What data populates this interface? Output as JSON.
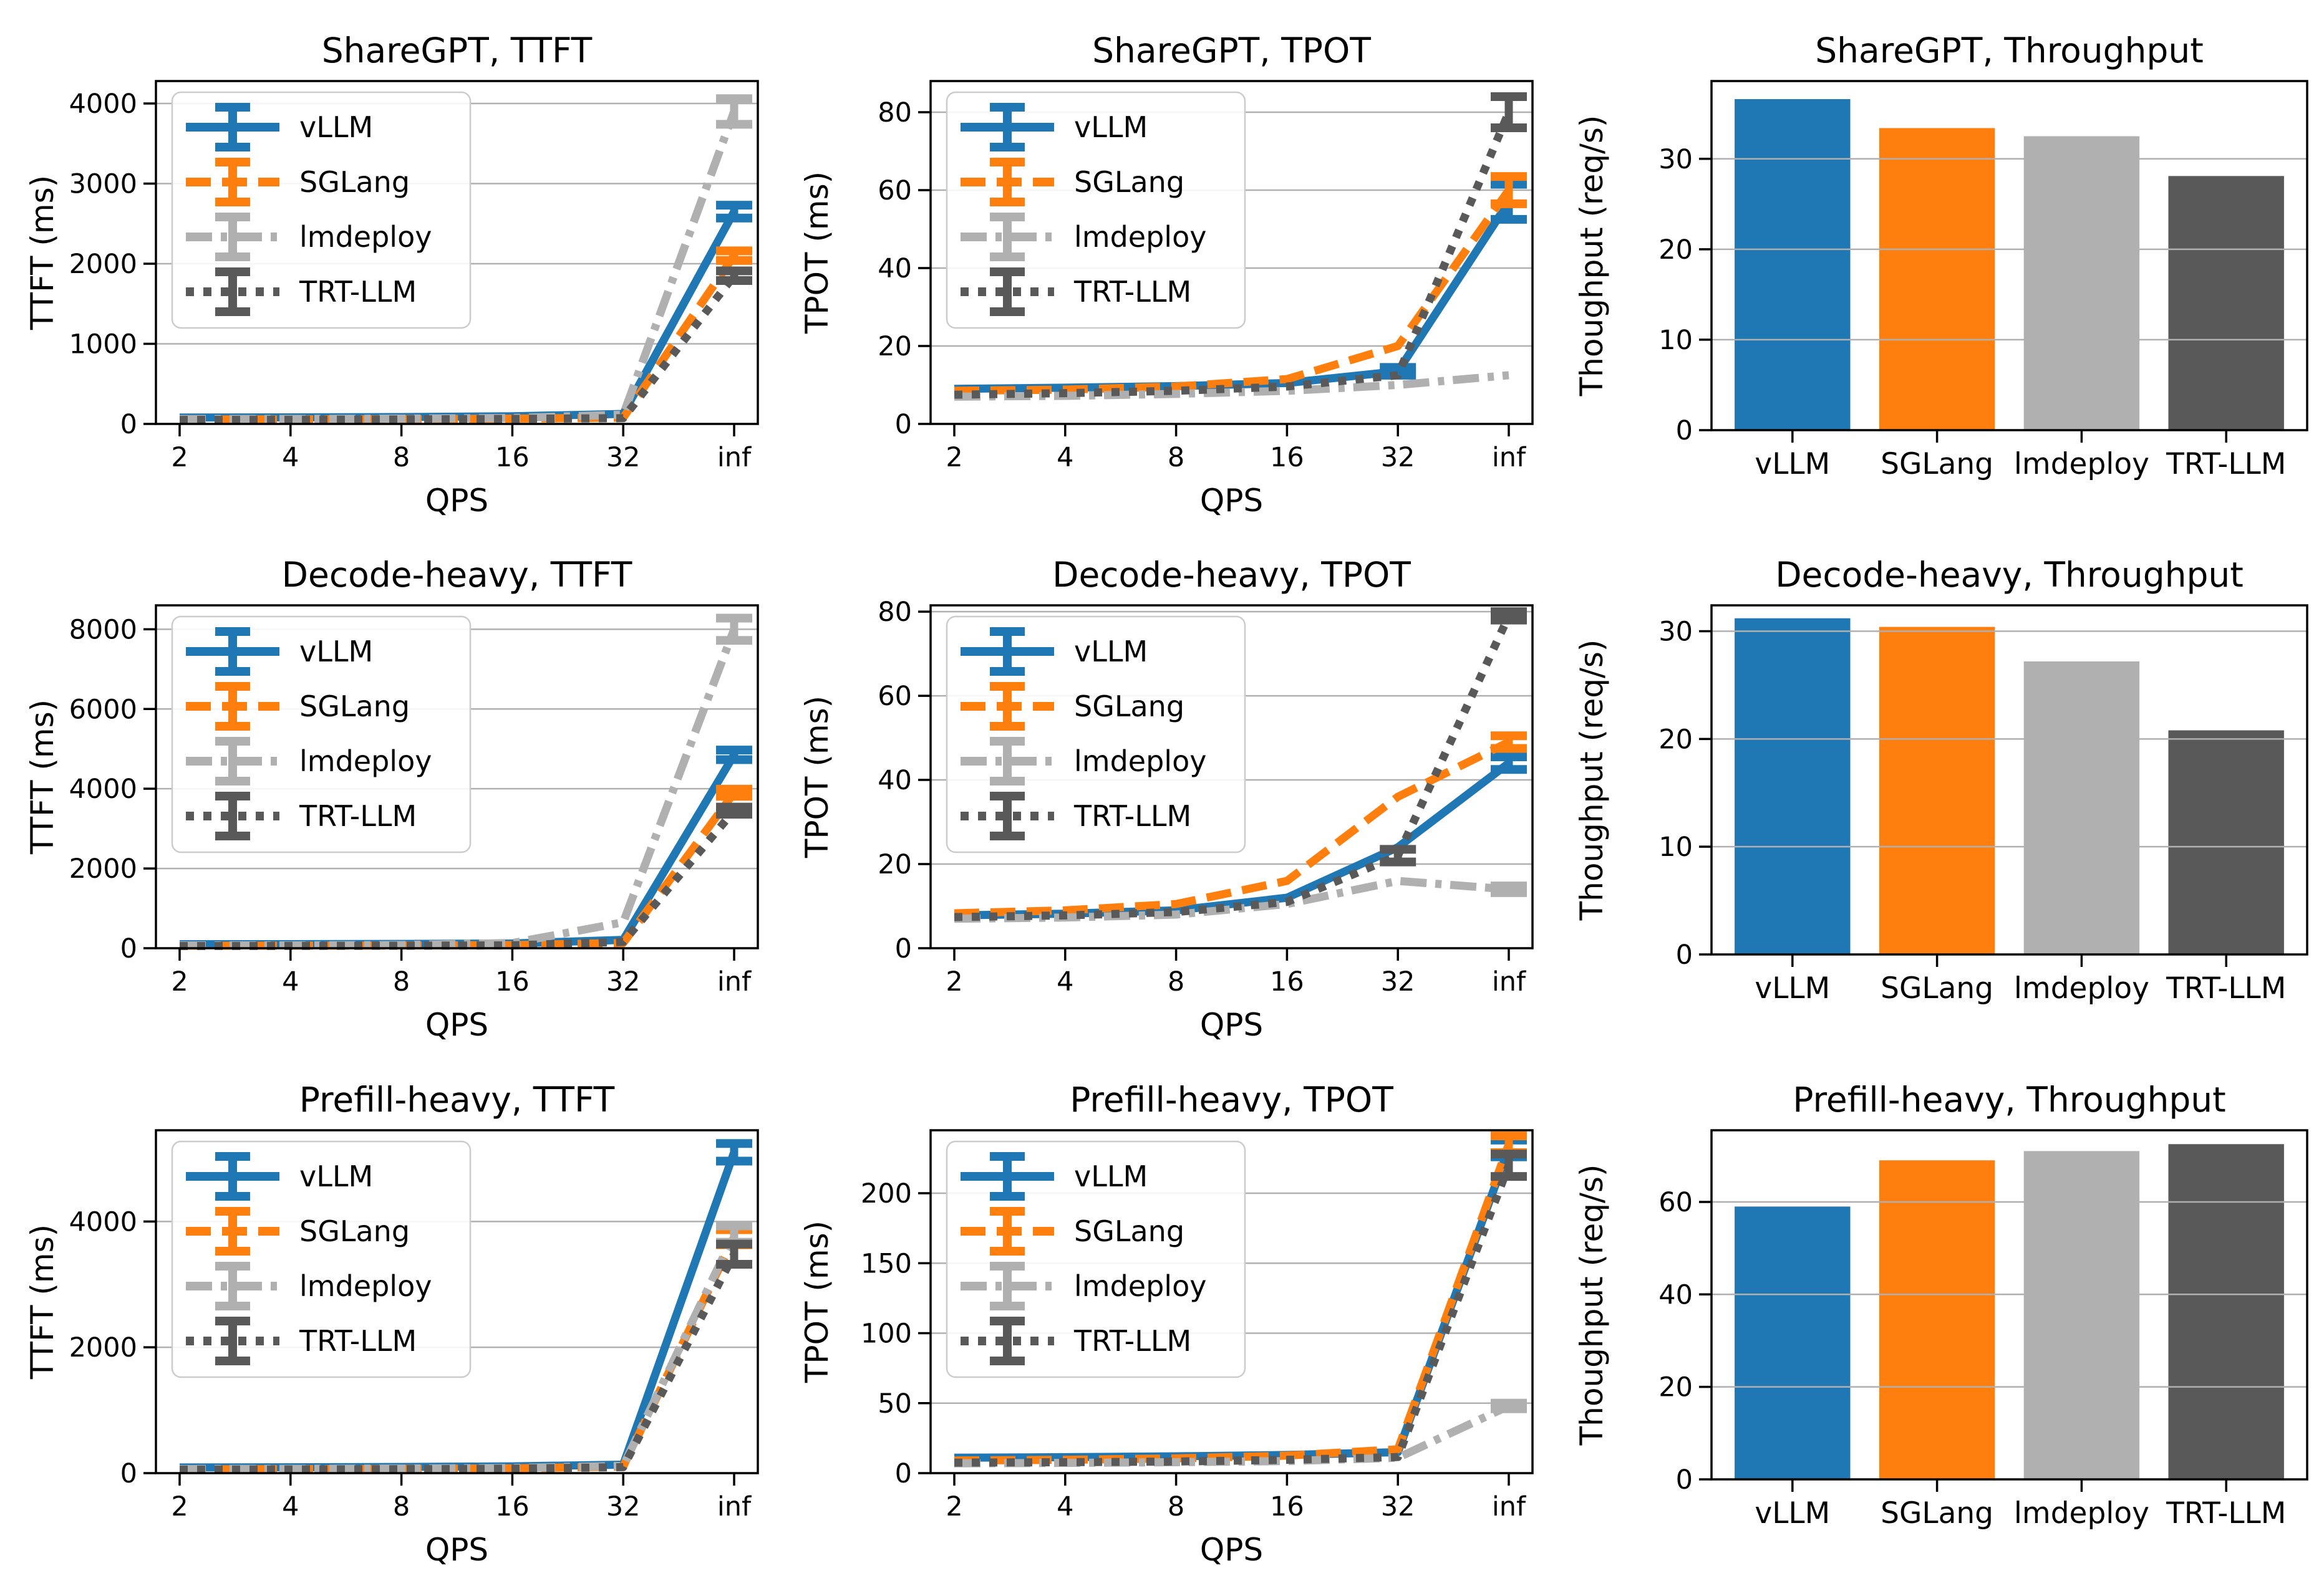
{
  "figure": {
    "rows": 3,
    "cols": 3,
    "background": "#ffffff"
  },
  "series_meta": {
    "names": [
      "vLLM",
      "SGLang",
      "lmdeploy",
      "TRT-LLM"
    ],
    "colors": [
      "#1f77b4",
      "#ff7f0e",
      "#b0b0b0",
      "#595959"
    ],
    "dashes": [
      "solid",
      "dashed",
      "dashdot",
      "dotted"
    ]
  },
  "chart_data": [
    {
      "type": "line",
      "title": "ShareGPT, TTFT",
      "xlabel": "QPS",
      "ylabel": "TTFT (ms)",
      "x_ticklabels": [
        "2",
        "4",
        "8",
        "16",
        "32",
        "inf"
      ],
      "yticks": [
        0,
        1000,
        2000,
        3000,
        4000
      ],
      "ylim": [
        0,
        4280
      ],
      "grid": true,
      "legend_position": "upper-left",
      "series": [
        {
          "name": "vLLM",
          "color": "#1f77b4",
          "dash": "solid",
          "values": [
            80,
            82,
            86,
            95,
            125,
            2650
          ],
          "yerr": [
            0,
            0,
            0,
            0,
            0,
            80
          ]
        },
        {
          "name": "SGLang",
          "color": "#ff7f0e",
          "dash": "dashed",
          "values": [
            55,
            57,
            60,
            66,
            78,
            2100
          ],
          "yerr": [
            0,
            0,
            0,
            0,
            0,
            60
          ]
        },
        {
          "name": "lmdeploy",
          "color": "#b0b0b0",
          "dash": "dashdot",
          "values": [
            60,
            62,
            66,
            74,
            115,
            3900
          ],
          "yerr": [
            0,
            0,
            0,
            0,
            0,
            160
          ]
        },
        {
          "name": "TRT-LLM",
          "color": "#595959",
          "dash": "dotted",
          "values": [
            50,
            52,
            56,
            63,
            72,
            1850
          ],
          "yerr": [
            0,
            0,
            0,
            0,
            0,
            60
          ]
        }
      ]
    },
    {
      "type": "line",
      "title": "ShareGPT, TPOT",
      "xlabel": "QPS",
      "ylabel": "TPOT (ms)",
      "x_ticklabels": [
        "2",
        "4",
        "8",
        "16",
        "32",
        "inf"
      ],
      "yticks": [
        0,
        20,
        40,
        60,
        80
      ],
      "ylim": [
        0,
        88
      ],
      "grid": true,
      "legend_position": "upper-left",
      "series": [
        {
          "name": "vLLM",
          "color": "#1f77b4",
          "dash": "solid",
          "values": [
            9,
            9.3,
            9.7,
            10.5,
            13.5,
            57
          ],
          "yerr": [
            0,
            0,
            0,
            0,
            1,
            4.5
          ]
        },
        {
          "name": "SGLang",
          "color": "#ff7f0e",
          "dash": "dashed",
          "values": [
            8.5,
            8.8,
            9.6,
            11.5,
            20,
            60
          ],
          "yerr": [
            0,
            0,
            0,
            0,
            0,
            3.5
          ]
        },
        {
          "name": "lmdeploy",
          "color": "#b0b0b0",
          "dash": "dashdot",
          "values": [
            7,
            7.2,
            7.7,
            8.5,
            10,
            12.5
          ],
          "yerr": [
            0,
            0,
            0,
            0,
            0,
            0
          ]
        },
        {
          "name": "TRT-LLM",
          "color": "#595959",
          "dash": "dotted",
          "values": [
            7.5,
            7.9,
            8.5,
            9.6,
            12.5,
            80
          ],
          "yerr": [
            0,
            0,
            0,
            0,
            0,
            4
          ]
        }
      ]
    },
    {
      "type": "bar",
      "title": "ShareGPT, Throughput",
      "ylabel": "Thoughput (req/s)",
      "categories": [
        "vLLM",
        "SGLang",
        "lmdeploy",
        "TRT-LLM"
      ],
      "values": [
        36.6,
        33.4,
        32.5,
        28.1
      ],
      "colors": [
        "#1f77b4",
        "#ff7f0e",
        "#b0b0b0",
        "#595959"
      ],
      "yticks": [
        0,
        10,
        20,
        30
      ],
      "ylim": [
        0,
        38.6
      ],
      "grid": true
    },
    {
      "type": "line",
      "title": "Decode-heavy, TTFT",
      "xlabel": "QPS",
      "ylabel": "TTFT (ms)",
      "x_ticklabels": [
        "2",
        "4",
        "8",
        "16",
        "32",
        "inf"
      ],
      "yticks": [
        0,
        2000,
        4000,
        6000,
        8000
      ],
      "ylim": [
        0,
        8600
      ],
      "grid": true,
      "legend_position": "upper-left",
      "series": [
        {
          "name": "vLLM",
          "color": "#1f77b4",
          "dash": "solid",
          "values": [
            100,
            102,
            108,
            120,
            210,
            4850
          ],
          "yerr": [
            0,
            0,
            0,
            0,
            0,
            120
          ]
        },
        {
          "name": "SGLang",
          "color": "#ff7f0e",
          "dash": "dashed",
          "values": [
            62,
            64,
            68,
            78,
            130,
            3900
          ],
          "yerr": [
            0,
            0,
            0,
            0,
            0,
            90
          ]
        },
        {
          "name": "lmdeploy",
          "color": "#b0b0b0",
          "dash": "dashdot",
          "values": [
            70,
            73,
            80,
            130,
            650,
            8000
          ],
          "yerr": [
            0,
            0,
            0,
            0,
            0,
            280
          ]
        },
        {
          "name": "TRT-LLM",
          "color": "#595959",
          "dash": "dotted",
          "values": [
            55,
            58,
            63,
            72,
            160,
            3450
          ],
          "yerr": [
            0,
            0,
            0,
            0,
            0,
            90
          ]
        }
      ]
    },
    {
      "type": "line",
      "title": "Decode-heavy, TPOT",
      "xlabel": "QPS",
      "ylabel": "TPOT (ms)",
      "x_ticklabels": [
        "2",
        "4",
        "8",
        "16",
        "32",
        "inf"
      ],
      "yticks": [
        0,
        20,
        40,
        60,
        80
      ],
      "ylim": [
        0,
        81.5
      ],
      "grid": true,
      "legend_position": "upper-left",
      "series": [
        {
          "name": "vLLM",
          "color": "#1f77b4",
          "dash": "solid",
          "values": [
            7.8,
            8.2,
            9,
            12,
            24,
            44
          ],
          "yerr": [
            0,
            0,
            0,
            0,
            0,
            1.5
          ]
        },
        {
          "name": "SGLang",
          "color": "#ff7f0e",
          "dash": "dashed",
          "values": [
            8.3,
            9,
            10.5,
            16,
            36,
            49
          ],
          "yerr": [
            0,
            0,
            0,
            0,
            0,
            1.5
          ]
        },
        {
          "name": "lmdeploy",
          "color": "#b0b0b0",
          "dash": "dashdot",
          "values": [
            7,
            7.3,
            8,
            10.5,
            16,
            14
          ],
          "yerr": [
            0,
            0,
            0,
            0,
            0,
            0.8
          ]
        },
        {
          "name": "TRT-LLM",
          "color": "#595959",
          "dash": "dotted",
          "values": [
            7.4,
            7.8,
            8.6,
            11,
            22,
            79
          ],
          "yerr": [
            0,
            0,
            0,
            0,
            1.5,
            1
          ]
        }
      ]
    },
    {
      "type": "bar",
      "title": "Decode-heavy, Throughput",
      "ylabel": "Thoughput (req/s)",
      "categories": [
        "vLLM",
        "SGLang",
        "lmdeploy",
        "TRT-LLM"
      ],
      "values": [
        31.2,
        30.4,
        27.2,
        20.8
      ],
      "colors": [
        "#1f77b4",
        "#ff7f0e",
        "#b0b0b0",
        "#595959"
      ],
      "yticks": [
        0,
        10,
        20,
        30
      ],
      "ylim": [
        0,
        32.4
      ],
      "grid": true
    },
    {
      "type": "line",
      "title": "Prefill-heavy, TTFT",
      "xlabel": "QPS",
      "ylabel": "TTFT (ms)",
      "x_ticklabels": [
        "2",
        "4",
        "8",
        "16",
        "32",
        "inf"
      ],
      "yticks": [
        0,
        2000,
        4000
      ],
      "ylim": [
        0,
        5450
      ],
      "grid": true,
      "legend_position": "upper-left",
      "series": [
        {
          "name": "vLLM",
          "color": "#1f77b4",
          "dash": "solid",
          "values": [
            90,
            93,
            98,
            108,
            135,
            5100
          ],
          "yerr": [
            0,
            0,
            0,
            0,
            0,
            140
          ]
        },
        {
          "name": "SGLang",
          "color": "#ff7f0e",
          "dash": "dashed",
          "values": [
            60,
            63,
            68,
            76,
            105,
            3750
          ],
          "yerr": [
            0,
            0,
            0,
            0,
            0,
            120
          ]
        },
        {
          "name": "lmdeploy",
          "color": "#b0b0b0",
          "dash": "dashdot",
          "values": [
            65,
            68,
            73,
            82,
            115,
            3800
          ],
          "yerr": [
            0,
            0,
            0,
            0,
            0,
            130
          ]
        },
        {
          "name": "TRT-LLM",
          "color": "#595959",
          "dash": "dotted",
          "values": [
            55,
            58,
            63,
            72,
            95,
            3480
          ],
          "yerr": [
            0,
            0,
            0,
            0,
            0,
            160
          ]
        }
      ]
    },
    {
      "type": "line",
      "title": "Prefill-heavy, TPOT",
      "xlabel": "QPS",
      "ylabel": "TPOT (ms)",
      "x_ticklabels": [
        "2",
        "4",
        "8",
        "16",
        "32",
        "inf"
      ],
      "yticks": [
        0,
        50,
        100,
        150,
        200
      ],
      "ylim": [
        0,
        245
      ],
      "grid": true,
      "legend_position": "upper-left",
      "series": [
        {
          "name": "vLLM",
          "color": "#1f77b4",
          "dash": "solid",
          "values": [
            11,
            11.4,
            12,
            13,
            15,
            232
          ],
          "yerr": [
            0,
            0,
            0,
            0,
            0,
            6
          ]
        },
        {
          "name": "SGLang",
          "color": "#ff7f0e",
          "dash": "dashed",
          "values": [
            9,
            9.5,
            10.5,
            12.5,
            17,
            235
          ],
          "yerr": [
            0,
            0,
            0,
            0,
            0,
            6
          ]
        },
        {
          "name": "lmdeploy",
          "color": "#b0b0b0",
          "dash": "dashdot",
          "values": [
            7,
            7.3,
            7.8,
            8.6,
            11,
            48
          ],
          "yerr": [
            0,
            0,
            0,
            0,
            0,
            2
          ]
        },
        {
          "name": "TRT-LLM",
          "color": "#595959",
          "dash": "dotted",
          "values": [
            7.5,
            7.8,
            8.3,
            9.5,
            11.5,
            220
          ],
          "yerr": [
            0,
            0,
            0,
            0,
            0,
            8
          ]
        }
      ]
    },
    {
      "type": "bar",
      "title": "Prefill-heavy, Throughput",
      "ylabel": "Thoughput (req/s)",
      "categories": [
        "vLLM",
        "SGLang",
        "lmdeploy",
        "TRT-LLM"
      ],
      "values": [
        59,
        69,
        71,
        72.5
      ],
      "colors": [
        "#1f77b4",
        "#ff7f0e",
        "#b0b0b0",
        "#595959"
      ],
      "yticks": [
        0,
        20,
        40,
        60
      ],
      "ylim": [
        0,
        75.5
      ],
      "grid": true
    }
  ]
}
